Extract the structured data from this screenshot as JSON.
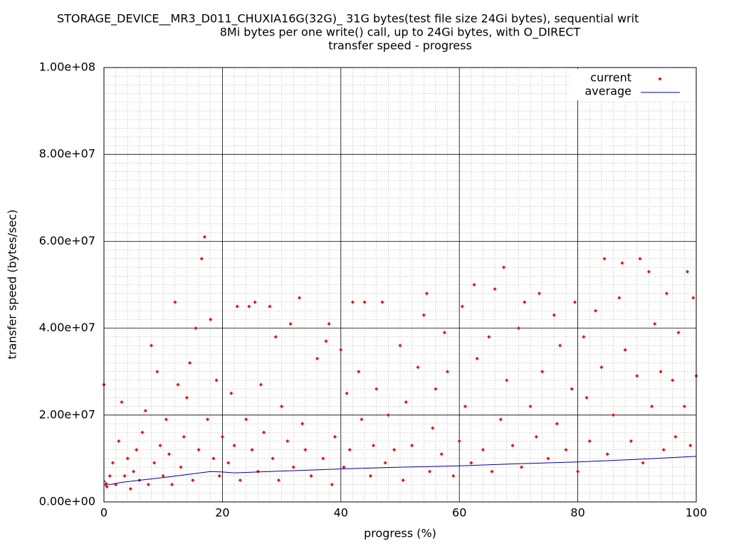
{
  "chart_data": {
    "type": "scatter",
    "title_lines": [
      "STORAGE_DEVICE__MR3_D011_CHUXIA16G(32G)_ 31G bytes(test file size 24Gi bytes), sequential writ",
      "8Mi bytes per one write() call, up to 24Gi bytes, with O_DIRECT",
      "transfer speed - progress"
    ],
    "xlabel": "progress (%)",
    "ylabel": "transfer speed (bytes/sec)",
    "xlim": [
      0,
      100
    ],
    "xticks": [
      0,
      20,
      40,
      60,
      80,
      100
    ],
    "ylim": [
      0,
      100000000
    ],
    "yticks": [
      {
        "value": 0,
        "label": "0.00e+00"
      },
      {
        "value": 20000000,
        "label": "2.00e+07"
      },
      {
        "value": 40000000,
        "label": "4.00e+07"
      },
      {
        "value": 60000000,
        "label": "6.00e+07"
      },
      {
        "value": 80000000,
        "label": "8.00e+07"
      },
      {
        "value": 100000000,
        "label": "1.00e+08"
      }
    ],
    "grid": true,
    "legend": "top-right",
    "series": [
      {
        "name": "current",
        "color": "#ff0000",
        "style": "points",
        "x": [
          0,
          0.3,
          0.5,
          1,
          1.5,
          2,
          2.5,
          3,
          3.5,
          4,
          4.5,
          5,
          5.5,
          6,
          6.5,
          7,
          7.5,
          8,
          8.5,
          9,
          9.5,
          10,
          10.5,
          11,
          11.5,
          12,
          12.5,
          13,
          13.5,
          14,
          14.5,
          15,
          15.5,
          16,
          16.5,
          17,
          17.5,
          18,
          18.5,
          19,
          19.5,
          20,
          21,
          21.5,
          22,
          22.5,
          23,
          24,
          24.5,
          25,
          25.5,
          26,
          26.5,
          27,
          28,
          28.5,
          29,
          29.5,
          30,
          31,
          31.5,
          32,
          33,
          33.5,
          34,
          35,
          36,
          37,
          37.5,
          38,
          38.5,
          39,
          40,
          40.5,
          41,
          41.5,
          42,
          43,
          43.5,
          44,
          45,
          45.5,
          46,
          47,
          47.5,
          48,
          49,
          50,
          50.5,
          51,
          52,
          53,
          54,
          54.5,
          55,
          55.5,
          56,
          57,
          57.5,
          58,
          59,
          60,
          60.5,
          61,
          62,
          62.5,
          63,
          64,
          65,
          65.5,
          66,
          67,
          67.5,
          68,
          69,
          70,
          70.5,
          71,
          72,
          73,
          73.5,
          74,
          75,
          76,
          76.5,
          77,
          78,
          79,
          79.5,
          80,
          81,
          81.5,
          82,
          83,
          84,
          84.5,
          85,
          86,
          87,
          87.5,
          88,
          89,
          90,
          90.5,
          91,
          92,
          92.5,
          93,
          94,
          94.5,
          95,
          96,
          96.5,
          97,
          98,
          98.5,
          99,
          99.5,
          100
        ],
        "values": [
          27000000.0,
          4000000.0,
          3500000.0,
          6000000.0,
          9000000.0,
          4000000.0,
          14000000.0,
          23000000.0,
          6000000.0,
          10000000.0,
          3000000.0,
          7000000.0,
          12000000.0,
          5000000.0,
          16000000.0,
          21000000.0,
          4000000.0,
          36000000.0,
          9000000.0,
          30000000.0,
          13000000.0,
          6000000.0,
          19000000.0,
          11000000.0,
          4000000.0,
          46000000.0,
          27000000.0,
          8000000.0,
          15000000.0,
          24000000.0,
          32000000.0,
          5000000.0,
          40000000.0,
          12000000.0,
          56000000.0,
          61000000.0,
          19000000.0,
          42000000.0,
          10000000.0,
          28000000.0,
          6000000.0,
          15000000.0,
          9000000.0,
          25000000.0,
          13000000.0,
          45000000.0,
          5000000.0,
          19000000.0,
          45000000.0,
          12000000.0,
          46000000.0,
          7000000.0,
          27000000.0,
          16000000.0,
          45000000.0,
          10000000.0,
          38000000.0,
          5000000.0,
          22000000.0,
          14000000.0,
          41000000.0,
          8000000.0,
          47000000.0,
          18000000.0,
          12000000.0,
          6000000.0,
          33000000.0,
          10000000.0,
          37000000.0,
          41000000.0,
          4000000.0,
          15000000.0,
          35000000.0,
          8000000.0,
          25000000.0,
          12000000.0,
          46000000.0,
          30000000.0,
          19000000.0,
          46000000.0,
          6000000.0,
          13000000.0,
          26000000.0,
          46000000.0,
          9000000.0,
          20000000.0,
          12000000.0,
          36000000.0,
          5000000.0,
          23000000.0,
          13000000.0,
          31000000.0,
          43000000.0,
          48000000.0,
          7000000.0,
          17000000.0,
          26000000.0,
          11000000.0,
          39000000.0,
          30000000.0,
          6000000.0,
          14000000.0,
          45000000.0,
          22000000.0,
          9000000.0,
          50000000.0,
          33000000.0,
          12000000.0,
          38000000.0,
          7000000.0,
          49000000.0,
          19000000.0,
          54000000.0,
          28000000.0,
          13000000.0,
          40000000.0,
          8000000.0,
          46000000.0,
          22000000.0,
          15000000.0,
          48000000.0,
          30000000.0,
          10000000.0,
          43000000.0,
          18000000.0,
          36000000.0,
          12000000.0,
          26000000.0,
          46000000.0,
          7000000.0,
          38000000.0,
          24000000.0,
          14000000.0,
          44000000.0,
          31000000.0,
          56000000.0,
          11000000.0,
          20000000.0,
          47000000.0,
          55000000.0,
          35000000.0,
          14000000.0,
          29000000.0,
          56000000.0,
          9000000.0,
          53000000.0,
          22000000.0,
          41000000.0,
          30000000.0,
          12000000.0,
          48000000.0,
          28000000.0,
          15000000.0,
          39000000.0,
          22000000.0,
          53000000.0,
          13000000.0,
          47000000.0,
          29000000.0
        ]
      },
      {
        "name": "average",
        "color": "#0000a0",
        "style": "line",
        "x": [
          0,
          0.5,
          1,
          3,
          6,
          10,
          14,
          18,
          20,
          22,
          30,
          40,
          50,
          60,
          70,
          80,
          90,
          100
        ],
        "values": [
          5000000.0,
          4200000.0,
          4000000.0,
          4500000.0,
          5000000.0,
          5600000.0,
          6300000.0,
          7000000.0,
          6900000.0,
          6700000.0,
          7100000.0,
          7600000.0,
          8000000.0,
          8300000.0,
          8800000.0,
          9200000.0,
          9800000.0,
          10500000.0
        ]
      }
    ]
  }
}
